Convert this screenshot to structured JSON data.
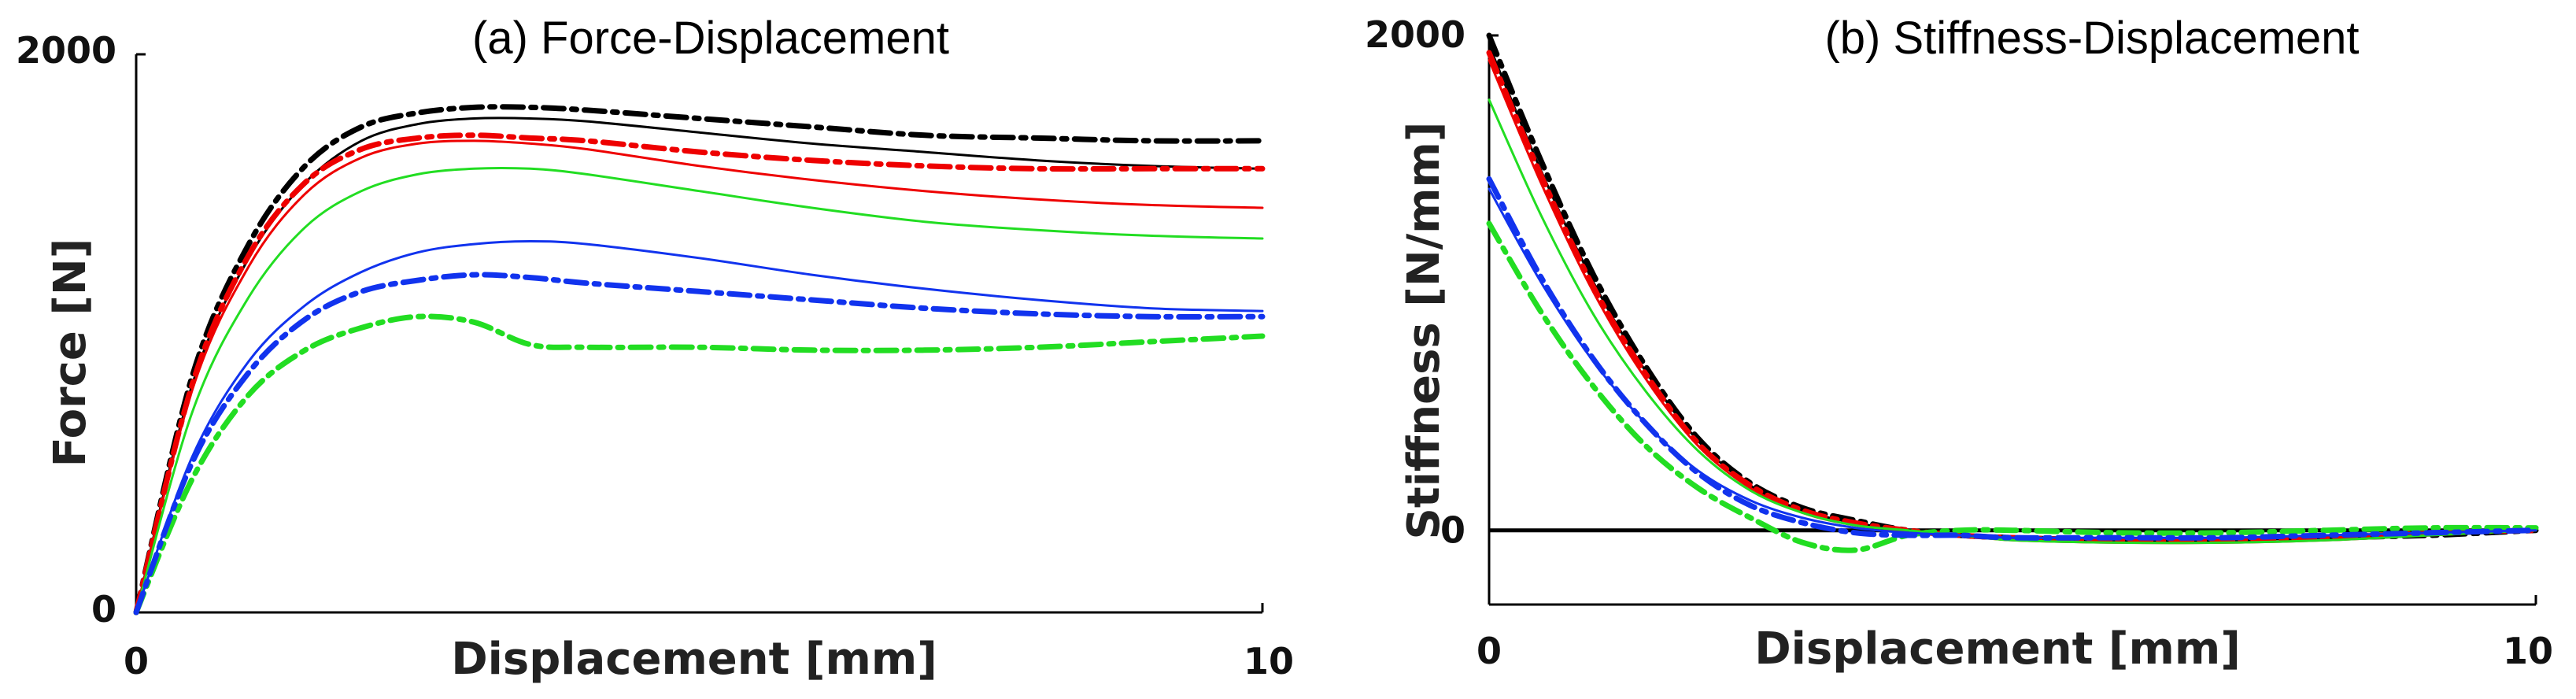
{
  "chart_data": [
    {
      "type": "line",
      "title": "(a) Force-Displacement",
      "xlabel": "Displacement [mm]",
      "ylabel": "Force [N]",
      "xlim": [
        0,
        10
      ],
      "ylim": [
        0,
        2000
      ],
      "xticks": [
        "0",
        "10"
      ],
      "yticks": [
        "0",
        "2000"
      ],
      "series": [
        {
          "name": "black-solid",
          "color": "#000000",
          "style": "solid",
          "x": [
            0,
            0.5,
            1,
            1.5,
            2,
            2.5,
            3,
            3.5,
            4,
            5,
            6,
            7,
            8,
            9,
            10
          ],
          "y": [
            0,
            820,
            1270,
            1540,
            1690,
            1750,
            1770,
            1770,
            1760,
            1720,
            1680,
            1650,
            1620,
            1600,
            1590
          ]
        },
        {
          "name": "black-dashdot",
          "color": "#000000",
          "style": "dashdot",
          "x": [
            0,
            0.5,
            1,
            1.5,
            2,
            2.5,
            3,
            3.5,
            4,
            5,
            6,
            7,
            8,
            9,
            10
          ],
          "y": [
            0,
            850,
            1320,
            1600,
            1740,
            1790,
            1810,
            1810,
            1800,
            1770,
            1740,
            1710,
            1700,
            1690,
            1690
          ]
        },
        {
          "name": "red-solid",
          "color": "#ee0000",
          "style": "solid",
          "x": [
            0,
            0.5,
            1,
            1.5,
            2,
            2.5,
            3,
            3.5,
            4,
            5,
            6,
            7,
            8,
            9,
            10
          ],
          "y": [
            0,
            800,
            1240,
            1500,
            1630,
            1680,
            1690,
            1680,
            1660,
            1600,
            1550,
            1510,
            1480,
            1460,
            1450
          ]
        },
        {
          "name": "red-dashdot",
          "color": "#ee0000",
          "style": "dashdot",
          "x": [
            0,
            0.5,
            1,
            1.5,
            2,
            2.5,
            3,
            3.5,
            4,
            5,
            6,
            7,
            8,
            9,
            10
          ],
          "y": [
            0,
            820,
            1280,
            1540,
            1660,
            1700,
            1710,
            1700,
            1690,
            1650,
            1620,
            1600,
            1590,
            1590,
            1590
          ]
        },
        {
          "name": "green-solid",
          "color": "#22dd22",
          "style": "solid",
          "x": [
            0,
            0.5,
            1,
            1.5,
            2,
            2.5,
            3,
            3.5,
            4,
            5,
            6,
            7,
            8,
            9,
            10
          ],
          "y": [
            0,
            720,
            1130,
            1380,
            1510,
            1570,
            1590,
            1590,
            1570,
            1510,
            1450,
            1400,
            1370,
            1350,
            1340
          ]
        },
        {
          "name": "green-dashdot",
          "color": "#22dd22",
          "style": "dashdot",
          "x": [
            0,
            0.5,
            1,
            1.5,
            2,
            2.5,
            3,
            3.5,
            4,
            5,
            6,
            7,
            8,
            9,
            10
          ],
          "y": [
            0,
            480,
            780,
            940,
            1020,
            1060,
            1040,
            960,
            950,
            950,
            940,
            940,
            950,
            970,
            990
          ]
        },
        {
          "name": "blue-solid",
          "color": "#1133ee",
          "style": "solid",
          "x": [
            0,
            0.5,
            1,
            1.5,
            2,
            2.5,
            3,
            3.5,
            4,
            5,
            6,
            7,
            8,
            9,
            10
          ],
          "y": [
            0,
            560,
            900,
            1100,
            1220,
            1290,
            1320,
            1330,
            1320,
            1270,
            1210,
            1160,
            1120,
            1090,
            1080
          ]
        },
        {
          "name": "blue-dashdot",
          "color": "#1133ee",
          "style": "dashdot",
          "x": [
            0,
            0.5,
            1,
            1.5,
            2,
            2.5,
            3,
            3.5,
            4,
            5,
            6,
            7,
            8,
            9,
            10
          ],
          "y": [
            0,
            540,
            860,
            1050,
            1150,
            1190,
            1210,
            1200,
            1180,
            1150,
            1120,
            1090,
            1070,
            1060,
            1060
          ]
        }
      ]
    },
    {
      "type": "line",
      "title": "(b) Stiffness-Displacement",
      "xlabel": "Displacement [mm]",
      "ylabel": "Stiffness [N/mm]",
      "xlim": [
        0,
        10
      ],
      "ylim": [
        -300,
        2000
      ],
      "xticks": [
        "0",
        "10"
      ],
      "yticks": [
        "0",
        "2000"
      ],
      "zero_line": true,
      "series": [
        {
          "name": "black-solid",
          "color": "#000000",
          "style": "solid",
          "x": [
            0,
            0.5,
            1,
            1.5,
            2,
            2.5,
            3,
            3.5,
            4,
            4.5,
            5,
            6,
            7,
            8,
            9,
            10
          ],
          "y": [
            1960,
            1450,
            1000,
            640,
            360,
            180,
            80,
            30,
            0,
            -20,
            -30,
            -40,
            -40,
            -30,
            -20,
            0
          ]
        },
        {
          "name": "black-dashdot",
          "color": "#000000",
          "style": "dashdot",
          "x": [
            0,
            0.5,
            1,
            1.5,
            2,
            2.5,
            3,
            3.5,
            4,
            4.5,
            5,
            6,
            7,
            8,
            9,
            10
          ],
          "y": [
            2000,
            1490,
            1030,
            660,
            370,
            190,
            90,
            40,
            0,
            -20,
            -30,
            -40,
            -40,
            -30,
            -20,
            0
          ]
        },
        {
          "name": "red-solid",
          "color": "#ee0000",
          "style": "solid",
          "x": [
            0,
            0.5,
            1,
            1.5,
            2,
            2.5,
            3,
            3.5,
            4,
            4.5,
            5,
            6,
            7,
            8,
            9,
            10
          ],
          "y": [
            1900,
            1400,
            960,
            610,
            340,
            170,
            70,
            20,
            0,
            -20,
            -40,
            -50,
            -50,
            -40,
            -20,
            0
          ]
        },
        {
          "name": "red-dashdot",
          "color": "#ee0000",
          "style": "dashdot",
          "x": [
            0,
            0.5,
            1,
            1.5,
            2,
            2.5,
            3,
            3.5,
            4,
            4.5,
            5,
            6,
            7,
            8,
            9,
            10
          ],
          "y": [
            1930,
            1430,
            980,
            630,
            350,
            180,
            80,
            30,
            0,
            -20,
            -30,
            -40,
            -40,
            -30,
            -10,
            0
          ]
        },
        {
          "name": "green-solid",
          "color": "#22dd22",
          "style": "solid",
          "x": [
            0,
            0.5,
            1,
            1.5,
            2,
            2.5,
            3,
            3.5,
            4,
            4.5,
            5,
            6,
            7,
            8,
            9,
            10
          ],
          "y": [
            1740,
            1270,
            870,
            560,
            320,
            160,
            70,
            20,
            0,
            -20,
            -40,
            -50,
            -50,
            -40,
            -20,
            0
          ]
        },
        {
          "name": "green-dashdot",
          "color": "#22dd22",
          "style": "dashdot",
          "x": [
            0,
            0.5,
            1,
            1.5,
            2,
            2.5,
            3,
            3.5,
            4,
            4.5,
            5,
            6,
            7,
            8,
            9,
            10
          ],
          "y": [
            1240,
            880,
            580,
            340,
            170,
            50,
            -50,
            -80,
            -20,
            0,
            0,
            -10,
            -10,
            0,
            10,
            10
          ]
        },
        {
          "name": "blue-solid",
          "color": "#1133ee",
          "style": "solid",
          "x": [
            0,
            0.5,
            1,
            1.5,
            2,
            2.5,
            3,
            3.5,
            4,
            4.5,
            5,
            6,
            7,
            8,
            9,
            10
          ],
          "y": [
            1380,
            1000,
            680,
            430,
            240,
            120,
            50,
            10,
            -10,
            -20,
            -30,
            -30,
            -30,
            -20,
            -10,
            0
          ]
        },
        {
          "name": "blue-dashdot",
          "color": "#1133ee",
          "style": "dashdot",
          "x": [
            0,
            0.5,
            1,
            1.5,
            2,
            2.5,
            3,
            3.5,
            4,
            4.5,
            5,
            6,
            7,
            8,
            9,
            10
          ],
          "y": [
            1420,
            1020,
            690,
            430,
            230,
            100,
            30,
            -10,
            -20,
            -20,
            -30,
            -30,
            -30,
            -20,
            -10,
            0
          ]
        }
      ]
    }
  ]
}
